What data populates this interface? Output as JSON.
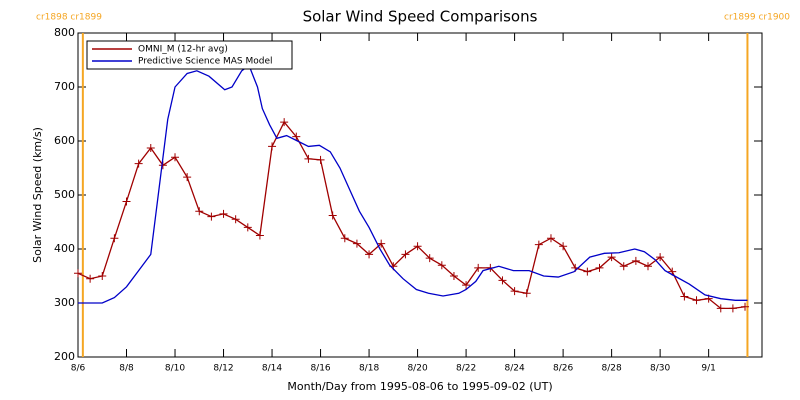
{
  "chart_data": {
    "type": "line",
    "title": "Solar Wind Speed Comparisons",
    "x_label": "Month/Day from 1995-08-06 to 1995-09-02 (UT)",
    "y_label": "Solar Wind Speed (km/s)",
    "xlim": [
      0,
      28.2
    ],
    "ylim": [
      200,
      800
    ],
    "yticks": [
      200,
      300,
      400,
      500,
      600,
      700,
      800
    ],
    "xticks": [
      {
        "value": 0,
        "label": "8/6"
      },
      {
        "value": 2,
        "label": "8/8"
      },
      {
        "value": 4,
        "label": "8/10"
      },
      {
        "value": 6,
        "label": "8/12"
      },
      {
        "value": 8,
        "label": "8/14"
      },
      {
        "value": 10,
        "label": "8/16"
      },
      {
        "value": 12,
        "label": "8/18"
      },
      {
        "value": 14,
        "label": "8/20"
      },
      {
        "value": 16,
        "label": "8/22"
      },
      {
        "value": 18,
        "label": "8/24"
      },
      {
        "value": 20,
        "label": "8/26"
      },
      {
        "value": 22,
        "label": "8/28"
      },
      {
        "value": 24,
        "label": "8/30"
      },
      {
        "value": 26,
        "label": "9/1"
      }
    ],
    "markers": {
      "color": "#f5a623",
      "items": [
        {
          "x": 0.2,
          "label": "cr1898 cr1899"
        },
        {
          "x": 27.6,
          "label": "cr1899 cr1900"
        }
      ]
    },
    "legend": "upper left",
    "series": [
      {
        "name": "OMNI_M (12-hr avg)",
        "color": "#a00000",
        "marker": "+",
        "x": [
          0,
          0.5,
          1,
          1.5,
          2,
          2.5,
          3,
          3.5,
          4,
          4.5,
          5,
          5.5,
          6,
          6.5,
          7,
          7.5,
          8,
          8.5,
          9,
          9.5,
          10,
          10.5,
          11,
          11.5,
          12,
          12.5,
          13,
          13.5,
          14,
          14.5,
          15,
          15.5,
          16,
          16.5,
          17,
          17.5,
          18,
          18.5,
          19,
          19.5,
          20,
          20.5,
          21,
          21.5,
          22,
          22.5,
          23,
          23.5,
          24,
          24.5,
          25,
          25.5,
          26,
          26.5,
          27,
          27.5
        ],
        "values": [
          355,
          345,
          350,
          420,
          488,
          558,
          587,
          555,
          570,
          533,
          470,
          460,
          465,
          455,
          440,
          425,
          590,
          635,
          608,
          567,
          565,
          462,
          420,
          410,
          390,
          410,
          368,
          390,
          405,
          383,
          370,
          350,
          333,
          365,
          365,
          342,
          322,
          318,
          408,
          420,
          405,
          365,
          358,
          365,
          385,
          368,
          378,
          368,
          385,
          358,
          312,
          305,
          308,
          290,
          290,
          293
        ]
      },
      {
        "name": "Predictive Science MAS Model",
        "color": "#0000c8",
        "marker": null,
        "x": [
          0,
          0.5,
          1,
          1.5,
          2,
          2.5,
          3,
          3.7,
          4,
          4.5,
          4.9,
          5.4,
          6.05,
          6.35,
          6.75,
          7.05,
          7.4,
          7.6,
          7.9,
          8.2,
          8.6,
          9.05,
          9.5,
          9.95,
          10.4,
          10.8,
          11.2,
          11.6,
          12,
          12.45,
          12.85,
          13.4,
          13.95,
          14.45,
          15.05,
          15.7,
          16,
          16.4,
          16.7,
          17.35,
          17.95,
          18.6,
          19.2,
          19.8,
          20.45,
          21.1,
          21.7,
          22.3,
          22.95,
          23.35,
          23.8,
          24.2,
          24.6,
          25.2,
          25.85,
          26.5,
          27.1,
          27.6
        ],
        "values": [
          300,
          300,
          300,
          310,
          330,
          360,
          390,
          640,
          700,
          725,
          730,
          720,
          695,
          700,
          730,
          740,
          700,
          660,
          630,
          605,
          610,
          600,
          590,
          592,
          580,
          550,
          510,
          470,
          440,
          400,
          370,
          345,
          325,
          318,
          313,
          318,
          325,
          340,
          360,
          368,
          360,
          360,
          350,
          348,
          358,
          385,
          392,
          393,
          400,
          395,
          380,
          360,
          350,
          335,
          315,
          308,
          305,
          305
        ]
      }
    ]
  }
}
